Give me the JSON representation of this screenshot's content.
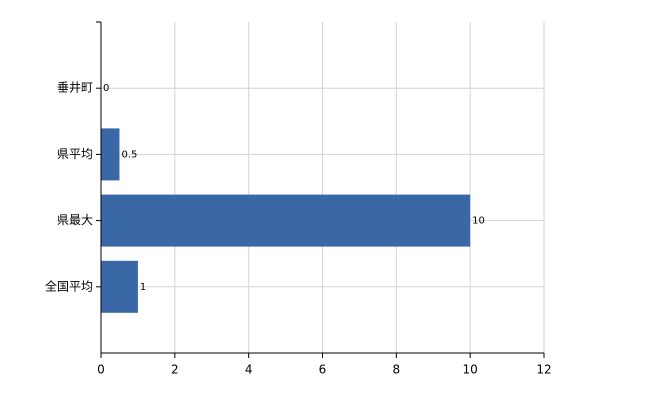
{
  "chart_data": {
    "type": "bar",
    "orientation": "horizontal",
    "categories": [
      "垂井町",
      "県平均",
      "県最大",
      "全国平均"
    ],
    "values": [
      0,
      0.5,
      10,
      1
    ],
    "color": "#3a67a6",
    "xlim": [
      0,
      12
    ],
    "xticks": [
      0,
      2,
      4,
      6,
      8,
      10,
      12
    ],
    "grid": true
  }
}
